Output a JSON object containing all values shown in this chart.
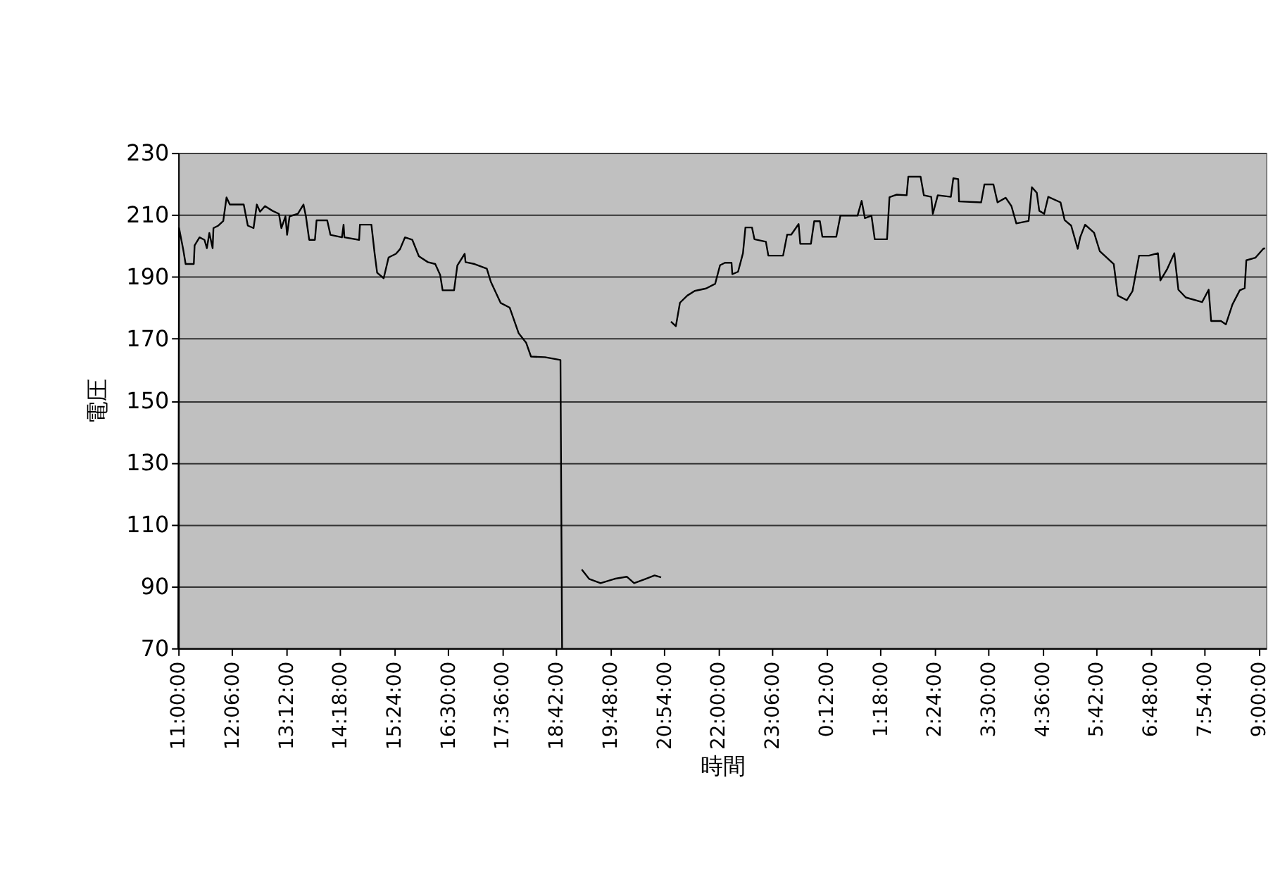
{
  "chart_data": {
    "type": "line",
    "xlabel": "時間",
    "ylabel": "電圧",
    "x": [
      "2000-01-01T11:00",
      "2000-01-01T11:01",
      "2000-01-01T11:06",
      "2000-01-01T11:09",
      "2000-01-01T11:19",
      "2000-01-01T11:20",
      "2000-01-01T11:26",
      "2000-01-01T11:32",
      "2000-01-01T11:35",
      "2000-01-01T11:38",
      "2000-01-01T11:42",
      "2000-01-01T11:43",
      "2000-01-01T11:49",
      "2000-01-01T11:55",
      "2000-01-01T11:59",
      "2000-01-01T12:03",
      "2000-01-01T12:20",
      "2000-01-01T12:25",
      "2000-01-01T12:32",
      "2000-01-01T12:36",
      "2000-01-01T12:40",
      "2000-01-01T12:46",
      "2000-01-01T12:55",
      "2000-01-01T13:03",
      "2000-01-01T13:06",
      "2000-01-01T13:11",
      "2000-01-01T13:13",
      "2000-01-01T13:16",
      "2000-01-01T13:26",
      "2000-01-01T13:33",
      "2000-01-01T13:36",
      "2000-01-01T13:40",
      "2000-01-01T13:47",
      "2000-01-01T13:49",
      "2000-01-01T14:02",
      "2000-01-01T14:06",
      "2000-01-01T14:20",
      "2000-01-01T14:22",
      "2000-01-01T14:23",
      "2000-01-01T14:41",
      "2000-01-01T14:42",
      "2000-01-01T14:56",
      "2000-01-01T15:00",
      "2000-01-01T15:03",
      "2000-01-01T15:11",
      "2000-01-01T15:17",
      "2000-01-01T15:26",
      "2000-01-01T15:31",
      "2000-01-01T15:37",
      "2000-01-01T15:46",
      "2000-01-01T15:54",
      "2000-01-01T16:05",
      "2000-01-01T16:14",
      "2000-01-01T16:20",
      "2000-01-01T16:23",
      "2000-01-01T16:37",
      "2000-01-01T16:41",
      "2000-01-01T16:50",
      "2000-01-01T16:51",
      "2000-01-01T17:02",
      "2000-01-01T17:17",
      "2000-01-01T17:22",
      "2000-01-01T17:34",
      "2000-01-01T17:45",
      "2000-01-01T17:56",
      "2000-01-01T18:05",
      "2000-01-01T18:11",
      "2000-01-01T18:28",
      "2000-01-01T18:47",
      "2000-01-01T18:49",
      "2000-01-01T19:00",
      "2000-01-01T19:13",
      "2000-01-01T19:22",
      "2000-01-01T19:36",
      "2000-01-01T19:53",
      "2000-01-01T20:08",
      "2000-01-01T20:17",
      "2000-01-01T20:31",
      "2000-01-01T20:42",
      "2000-01-01T20:50",
      "2000-01-01T20:57",
      "2000-01-01T21:02",
      "2000-01-01T21:08",
      "2000-01-01T21:13",
      "2000-01-01T21:22",
      "2000-01-01T21:31",
      "2000-01-01T21:45",
      "2000-01-01T21:56",
      "2000-01-01T22:02",
      "2000-01-01T22:08",
      "2000-01-01T22:16",
      "2000-01-01T22:17",
      "2000-01-01T22:24",
      "2000-01-01T22:30",
      "2000-01-01T22:33",
      "2000-01-01T22:41",
      "2000-01-01T22:44",
      "2000-01-01T22:58",
      "2000-01-01T23:01",
      "2000-01-01T23:19",
      "2000-01-01T23:24",
      "2000-01-01T23:29",
      "2000-01-01T23:38",
      "2000-01-01T23:40",
      "2000-01-01T23:53",
      "2000-01-01T23:57",
      "2000-01-02T00:04",
      "2000-01-02T00:07",
      "2000-01-02T00:24",
      "2000-01-02T00:29",
      "2000-01-02T00:50",
      "2000-01-02T00:55",
      "2000-01-02T00:59",
      "2000-01-02T01:07",
      "2000-01-02T01:11",
      "2000-01-02T01:26",
      "2000-01-02T01:29",
      "2000-01-02T01:38",
      "2000-01-02T01:50",
      "2000-01-02T01:52",
      "2000-01-02T02:07",
      "2000-01-02T02:11",
      "2000-01-02T02:20",
      "2000-01-02T02:22",
      "2000-01-02T02:28",
      "2000-01-02T02:44",
      "2000-01-02T02:47",
      "2000-01-02T02:53",
      "2000-01-02T02:54",
      "2000-01-02T03:21",
      "2000-01-02T03:25",
      "2000-01-02T03:36",
      "2000-01-02T03:41",
      "2000-01-02T03:51",
      "2000-01-02T03:58",
      "2000-01-02T04:04",
      "2000-01-02T04:19",
      "2000-01-02T04:23",
      "2000-01-02T04:29",
      "2000-01-02T04:32",
      "2000-01-02T04:38",
      "2000-01-02T04:43",
      "2000-01-02T04:58",
      "2000-01-02T05:03",
      "2000-01-02T05:11",
      "2000-01-02T05:19",
      "2000-01-02T05:22",
      "2000-01-02T05:28",
      "2000-01-02T05:39",
      "2000-01-02T05:46",
      "2000-01-02T06:03",
      "2000-01-02T06:08",
      "2000-01-02T06:19",
      "2000-01-02T06:26",
      "2000-01-02T06:34",
      "2000-01-02T06:46",
      "2000-01-02T06:57",
      "2000-01-02T07:00",
      "2000-01-02T07:08",
      "2000-01-02T07:17",
      "2000-01-02T07:22",
      "2000-01-02T07:31",
      "2000-01-02T07:51",
      "2000-01-02T07:59",
      "2000-01-02T08:02",
      "2000-01-02T08:14",
      "2000-01-02T08:20",
      "2000-01-02T08:28",
      "2000-01-02T08:37",
      "2000-01-02T08:43",
      "2000-01-02T08:45",
      "2000-01-02T08:56",
      "2000-01-02T09:06",
      "2000-01-02T09:08"
    ],
    "series": [
      {
        "color": "#000000",
        "values": [
          70,
          205.7,
          198.9,
          194.1,
          194.1,
          200.1,
          202.7,
          201.9,
          199.2,
          204.1,
          199.2,
          205.7,
          206.5,
          208,
          215.6,
          213.3,
          213.3,
          206.5,
          205.7,
          213.3,
          211,
          212.8,
          211.3,
          210.3,
          205.7,
          209.5,
          203.5,
          209.5,
          210.3,
          213.3,
          209.5,
          201.9,
          201.9,
          208.2,
          208.2,
          203.5,
          202.7,
          206.8,
          202.7,
          201.9,
          206.8,
          206.8,
          197.4,
          191.3,
          189.5,
          196.2,
          197.4,
          198.9,
          202.7,
          201.9,
          196.6,
          194.7,
          194.1,
          190.6,
          185.6,
          185.6,
          193.6,
          197.4,
          194.7,
          194.1,
          192.6,
          188.3,
          181.5,
          180,
          171.7,
          168.7,
          164.2,
          164,
          163.1,
          70,
          null,
          95.4,
          92.4,
          91,
          92.4,
          93.1,
          91,
          92.4,
          93.5,
          92.9,
          null,
          175.5,
          174,
          181.6,
          183.9,
          185.4,
          186.2,
          187.7,
          193.7,
          194.5,
          194.5,
          190.8,
          191.6,
          197.6,
          205.9,
          205.9,
          202.1,
          201.3,
          196.8,
          196.8,
          203.6,
          203.6,
          207,
          200.6,
          200.6,
          207.9,
          207.9,
          202.9,
          202.9,
          209.7,
          209.7,
          214.5,
          208.9,
          209.7,
          202.1,
          202.1,
          215.7,
          216.5,
          216.3,
          222.3,
          222.3,
          216.3,
          215.8,
          210.3,
          216.3,
          215.8,
          221.8,
          221.5,
          214.3,
          214,
          219.8,
          219.8,
          214,
          215.5,
          212.8,
          207.2,
          208,
          218.9,
          217.1,
          211.3,
          210.3,
          215.8,
          214,
          208.3,
          206.5,
          199,
          202.7,
          206.8,
          204.2,
          198.2,
          194.1,
          183.9,
          182.4,
          185.4,
          196.8,
          196.8,
          197.6,
          188.8,
          192.3,
          197.6,
          185.8,
          183.3,
          181.8,
          185.8,
          175.7,
          175.7,
          174.6,
          181,
          185.6,
          186.3,
          195.3,
          196.1,
          199.1,
          199.1
        ]
      }
    ],
    "xlim": [
      "2000-01-01T11:00",
      "2000-01-02T09:09"
    ],
    "xticks": [
      {
        "value": "2000-01-01T11:00",
        "label": "11:00:00"
      },
      {
        "value": "2000-01-01T12:06",
        "label": "12:06:00"
      },
      {
        "value": "2000-01-01T13:12",
        "label": "13:12:00"
      },
      {
        "value": "2000-01-01T14:18",
        "label": "14:18:00"
      },
      {
        "value": "2000-01-01T15:24",
        "label": "15:24:00"
      },
      {
        "value": "2000-01-01T16:30",
        "label": "16:30:00"
      },
      {
        "value": "2000-01-01T17:36",
        "label": "17:36:00"
      },
      {
        "value": "2000-01-01T18:42",
        "label": "18:42:00"
      },
      {
        "value": "2000-01-01T19:48",
        "label": "19:48:00"
      },
      {
        "value": "2000-01-01T20:54",
        "label": "20:54:00"
      },
      {
        "value": "2000-01-01T22:00",
        "label": "22:00:00"
      },
      {
        "value": "2000-01-01T23:06",
        "label": "23:06:00"
      },
      {
        "value": "2000-01-02T00:12",
        "label": "0:12:00"
      },
      {
        "value": "2000-01-02T01:18",
        "label": "1:18:00"
      },
      {
        "value": "2000-01-02T02:24",
        "label": "2:24:00"
      },
      {
        "value": "2000-01-02T03:30",
        "label": "3:30:00"
      },
      {
        "value": "2000-01-02T04:36",
        "label": "4:36:00"
      },
      {
        "value": "2000-01-02T05:42",
        "label": "5:42:00"
      },
      {
        "value": "2000-01-02T06:48",
        "label": "6:48:00"
      },
      {
        "value": "2000-01-02T07:54",
        "label": "7:54:00"
      },
      {
        "value": "2000-01-02T09:00",
        "label": "9:00:00"
      }
    ],
    "ylim": [
      70,
      230
    ],
    "yticks": [
      70,
      90,
      110,
      130,
      150,
      170,
      190,
      210,
      230
    ],
    "grid": "y",
    "legend": false,
    "marker": "none",
    "line_style": "solid"
  }
}
